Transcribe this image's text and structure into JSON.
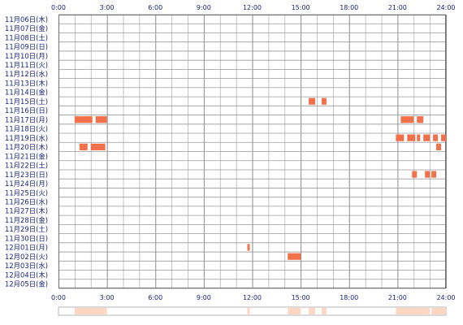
{
  "chart_data": {
    "type": "heatmap",
    "title": "",
    "xlabel": "",
    "ylabel": "",
    "x_range_hours": [
      0,
      24
    ],
    "x_tick_labels": [
      "0:00",
      "3:00",
      "6:00",
      "9:00",
      "12:00",
      "15:00",
      "18:00",
      "21:00",
      "24:00"
    ],
    "days": [
      "11月06日(木)",
      "11月07日(金)",
      "11月08日(土)",
      "11月09日(日)",
      "11月10日(月)",
      "11月11日(火)",
      "11月12日(水)",
      "11月13日(木)",
      "11月14日(金)",
      "11月15日(土)",
      "11月16日(日)",
      "11月17日(月)",
      "11月18日(火)",
      "11月19日(水)",
      "11月20日(木)",
      "11月21日(金)",
      "11月22日(土)",
      "11月23日(日)",
      "11月24日(月)",
      "11月25日(火)",
      "11月26日(水)",
      "11月27日(木)",
      "11月28日(金)",
      "11月29日(土)",
      "11月30日(日)",
      "12月01日(月)",
      "12月02日(火)",
      "12月03日(水)",
      "12月04日(木)",
      "12月05日(金)"
    ],
    "activity_color": "#f4704a",
    "summary_color": "#fdd7c3",
    "grid": true,
    "activity": [
      {
        "day": "11月15日(土)",
        "start": 15.5,
        "end": 15.9
      },
      {
        "day": "11月15日(土)",
        "start": 16.3,
        "end": 16.6
      },
      {
        "day": "11月17日(月)",
        "start": 1.0,
        "end": 2.1
      },
      {
        "day": "11月17日(月)",
        "start": 2.3,
        "end": 3.0
      },
      {
        "day": "11月17日(月)",
        "start": 21.2,
        "end": 22.0
      },
      {
        "day": "11月17日(月)",
        "start": 22.2,
        "end": 22.6
      },
      {
        "day": "11月19日(水)",
        "start": 20.9,
        "end": 21.4
      },
      {
        "day": "11月19日(水)",
        "start": 21.6,
        "end": 22.1
      },
      {
        "day": "11月19日(水)",
        "start": 22.2,
        "end": 22.4
      },
      {
        "day": "11月19日(水)",
        "start": 22.6,
        "end": 23.0
      },
      {
        "day": "11月19日(水)",
        "start": 23.2,
        "end": 23.5
      },
      {
        "day": "11月19日(水)",
        "start": 23.7,
        "end": 24.0
      },
      {
        "day": "11月20日(木)",
        "start": 1.3,
        "end": 1.8
      },
      {
        "day": "11月20日(木)",
        "start": 2.0,
        "end": 2.9
      },
      {
        "day": "11月20日(木)",
        "start": 23.4,
        "end": 23.7
      },
      {
        "day": "11月23日(日)",
        "start": 21.9,
        "end": 22.2
      },
      {
        "day": "11月23日(日)",
        "start": 22.7,
        "end": 23.0
      },
      {
        "day": "11月23日(日)",
        "start": 23.1,
        "end": 23.4
      },
      {
        "day": "12月01日(月)",
        "start": 11.7,
        "end": 11.85
      },
      {
        "day": "12月02日(火)",
        "start": 14.2,
        "end": 15.0
      }
    ]
  }
}
